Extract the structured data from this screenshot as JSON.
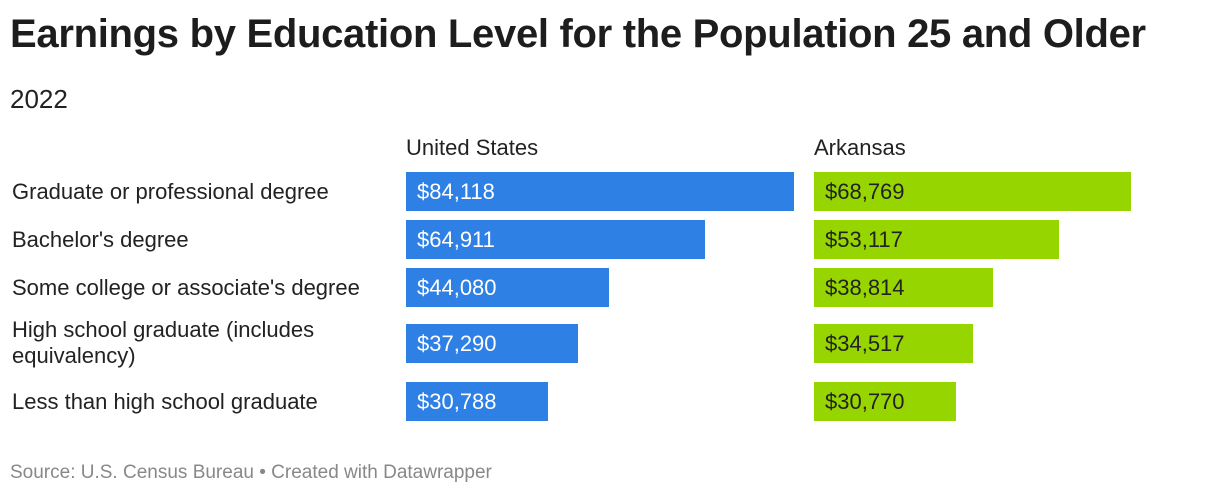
{
  "colors": {
    "us": "#2f80e4",
    "ar": "#97d500"
  },
  "chart_data": {
    "type": "bar",
    "title": "Earnings by Education Level for the Population 25 and Older",
    "subtitle": "2022",
    "categories": [
      "Graduate or professional degree",
      "Bachelor's degree",
      "Some college or associate's degree",
      "High school graduate (includes equivalency)",
      "Less than high school graduate"
    ],
    "series": [
      {
        "name": "United States",
        "values": [
          84118,
          64911,
          44080,
          37290,
          30788
        ],
        "labels": [
          "$84,118",
          "$64,911",
          "$44,080",
          "$37,290",
          "$30,788"
        ]
      },
      {
        "name": "Arkansas",
        "values": [
          68769,
          53117,
          38814,
          34517,
          30770
        ],
        "labels": [
          "$68,769",
          "$53,117",
          "$38,814",
          "$34,517",
          "$30,770"
        ]
      }
    ],
    "xlim": [
      0,
      84118
    ],
    "grid": false
  },
  "footer": "Source: U.S. Census Bureau • Created with Datawrapper"
}
